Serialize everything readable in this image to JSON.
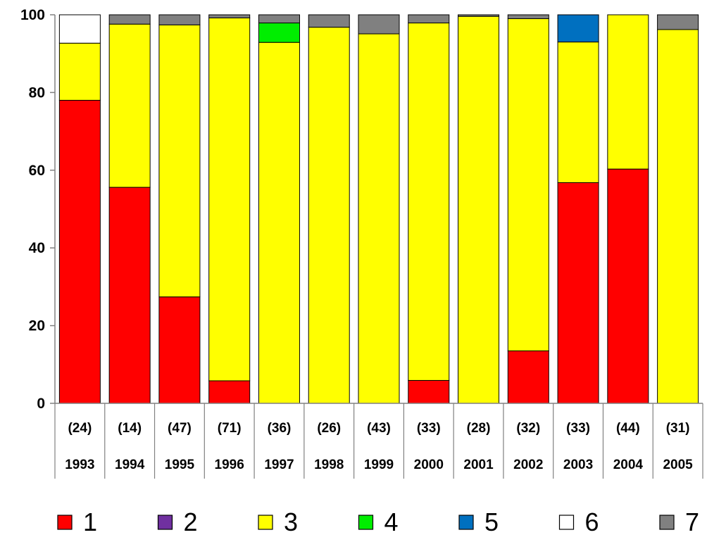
{
  "chart_data": {
    "type": "bar",
    "stacked": true,
    "title": "",
    "xlabel": "",
    "ylabel": "",
    "ylim": [
      0,
      100
    ],
    "yticks": [
      0,
      20,
      40,
      60,
      80,
      100
    ],
    "grid": false,
    "legend_position": "bottom",
    "categories": [
      "1993",
      "1994",
      "1995",
      "1996",
      "1997",
      "1998",
      "1999",
      "2000",
      "2001",
      "2002",
      "2003",
      "2004",
      "2005"
    ],
    "sample_sizes": [
      "(24)",
      "(14)",
      "(47)",
      "(71)",
      "(36)",
      "(26)",
      "(43)",
      "(33)",
      "(28)",
      "(32)",
      "(33)",
      "(44)",
      "(31)"
    ],
    "series": [
      {
        "name": "1",
        "color": "#ff0000",
        "values": [
          78.0,
          55.6,
          27.4,
          5.8,
          0,
          0,
          0,
          5.9,
          0,
          13.5,
          56.8,
          60.3,
          0
        ]
      },
      {
        "name": "2",
        "color": "#7030a0",
        "values": [
          0,
          0,
          0,
          0,
          0,
          0,
          0,
          0,
          0,
          0,
          0,
          0,
          0
        ]
      },
      {
        "name": "3",
        "color": "#ffff00",
        "values": [
          14.7,
          42.0,
          70.0,
          93.4,
          92.9,
          96.8,
          95.1,
          92.0,
          99.6,
          85.5,
          36.2,
          39.7,
          96.2
        ]
      },
      {
        "name": "4",
        "color": "#00ee00",
        "values": [
          0,
          0,
          0,
          0,
          5.0,
          0,
          0,
          0,
          0,
          0,
          0,
          0,
          0
        ]
      },
      {
        "name": "5",
        "color": "#0070c0",
        "values": [
          0,
          0,
          0,
          0,
          0,
          0,
          0,
          0,
          0,
          0,
          7.0,
          0,
          0
        ]
      },
      {
        "name": "6",
        "color": "#ffffff",
        "values": [
          7.3,
          0,
          0,
          0,
          0,
          0,
          0,
          0,
          0,
          0,
          0,
          0,
          0
        ]
      },
      {
        "name": "7",
        "color": "#808080",
        "values": [
          0,
          2.4,
          2.6,
          0.8,
          2.1,
          3.2,
          4.9,
          2.1,
          0.4,
          1.0,
          0,
          0,
          3.8
        ]
      }
    ]
  }
}
